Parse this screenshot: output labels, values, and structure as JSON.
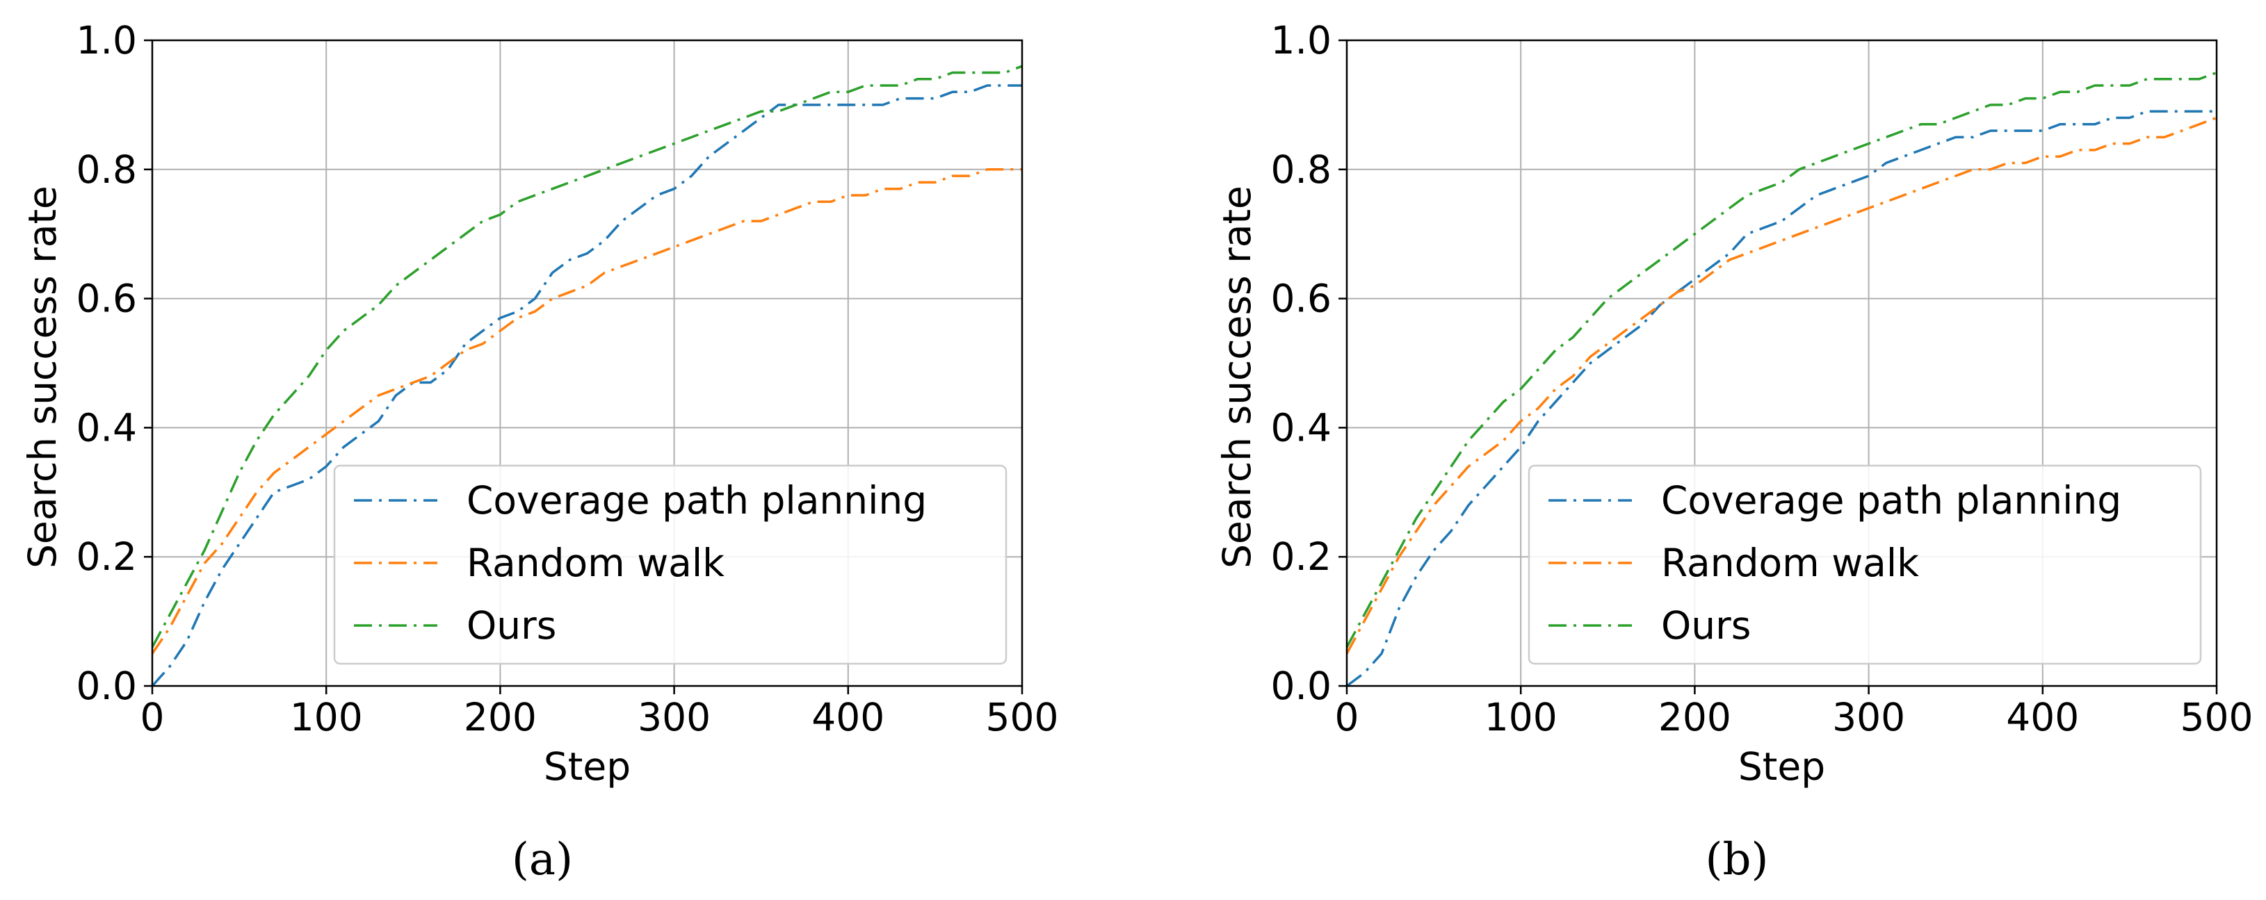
{
  "figure": {
    "subplots": [
      {
        "caption": "(a)",
        "chart_index": 0
      },
      {
        "caption": "(b)",
        "chart_index": 1
      }
    ]
  },
  "chart_data": [
    {
      "type": "line",
      "title": "",
      "xlabel": "Step",
      "ylabel": "Search success rate",
      "xlim": [
        0,
        500
      ],
      "ylim": [
        0.0,
        1.0
      ],
      "xticks": [
        "0",
        "100",
        "200",
        "300",
        "400",
        "500"
      ],
      "yticks": [
        "0.0",
        "0.2",
        "0.4",
        "0.6",
        "0.8",
        "1.0"
      ],
      "grid": true,
      "legend_position": "lower-right",
      "series": [
        {
          "name": "Coverage path planning",
          "color": "#1f77b4",
          "style": "dashdot",
          "x": [
            0,
            10,
            20,
            30,
            40,
            50,
            60,
            70,
            80,
            90,
            100,
            110,
            120,
            130,
            140,
            150,
            160,
            170,
            180,
            190,
            200,
            210,
            220,
            230,
            240,
            250,
            260,
            270,
            280,
            290,
            300,
            310,
            320,
            330,
            340,
            350,
            360,
            370,
            380,
            390,
            400,
            410,
            420,
            430,
            440,
            450,
            460,
            470,
            480,
            490,
            500
          ],
          "y": [
            0.0,
            0.03,
            0.07,
            0.13,
            0.18,
            0.22,
            0.26,
            0.3,
            0.31,
            0.32,
            0.34,
            0.37,
            0.39,
            0.41,
            0.45,
            0.47,
            0.47,
            0.49,
            0.53,
            0.55,
            0.57,
            0.58,
            0.6,
            0.64,
            0.66,
            0.67,
            0.69,
            0.72,
            0.74,
            0.76,
            0.77,
            0.79,
            0.82,
            0.84,
            0.86,
            0.88,
            0.9,
            0.9,
            0.9,
            0.9,
            0.9,
            0.9,
            0.9,
            0.91,
            0.91,
            0.91,
            0.92,
            0.92,
            0.93,
            0.93,
            0.93
          ]
        },
        {
          "name": "Random walk",
          "color": "#ff7f0e",
          "style": "dashdot",
          "x": [
            0,
            10,
            20,
            30,
            40,
            50,
            60,
            70,
            80,
            90,
            100,
            110,
            120,
            130,
            140,
            150,
            160,
            170,
            180,
            190,
            200,
            210,
            220,
            230,
            240,
            250,
            260,
            270,
            280,
            290,
            300,
            310,
            320,
            330,
            340,
            350,
            360,
            370,
            380,
            390,
            400,
            410,
            420,
            430,
            440,
            450,
            460,
            470,
            480,
            490,
            500
          ],
          "y": [
            0.05,
            0.09,
            0.14,
            0.19,
            0.22,
            0.26,
            0.3,
            0.33,
            0.35,
            0.37,
            0.39,
            0.41,
            0.43,
            0.45,
            0.46,
            0.47,
            0.48,
            0.5,
            0.52,
            0.53,
            0.55,
            0.57,
            0.58,
            0.6,
            0.61,
            0.62,
            0.64,
            0.65,
            0.66,
            0.67,
            0.68,
            0.69,
            0.7,
            0.71,
            0.72,
            0.72,
            0.73,
            0.74,
            0.75,
            0.75,
            0.76,
            0.76,
            0.77,
            0.77,
            0.78,
            0.78,
            0.79,
            0.79,
            0.8,
            0.8,
            0.8
          ]
        },
        {
          "name": "Ours",
          "color": "#2ca02c",
          "style": "dashdot",
          "x": [
            0,
            10,
            20,
            30,
            40,
            50,
            60,
            70,
            80,
            90,
            100,
            110,
            120,
            130,
            140,
            150,
            160,
            170,
            180,
            190,
            200,
            210,
            220,
            230,
            240,
            250,
            260,
            270,
            280,
            290,
            300,
            310,
            320,
            330,
            340,
            350,
            360,
            370,
            380,
            390,
            400,
            410,
            420,
            430,
            440,
            450,
            460,
            470,
            480,
            490,
            500
          ],
          "y": [
            0.06,
            0.11,
            0.16,
            0.21,
            0.27,
            0.33,
            0.38,
            0.42,
            0.45,
            0.48,
            0.52,
            0.55,
            0.57,
            0.59,
            0.62,
            0.64,
            0.66,
            0.68,
            0.7,
            0.72,
            0.73,
            0.75,
            0.76,
            0.77,
            0.78,
            0.79,
            0.8,
            0.81,
            0.82,
            0.83,
            0.84,
            0.85,
            0.86,
            0.87,
            0.88,
            0.89,
            0.89,
            0.9,
            0.91,
            0.92,
            0.92,
            0.93,
            0.93,
            0.93,
            0.94,
            0.94,
            0.95,
            0.95,
            0.95,
            0.95,
            0.96
          ]
        }
      ]
    },
    {
      "type": "line",
      "title": "",
      "xlabel": "Step",
      "ylabel": "Search success rate",
      "xlim": [
        0,
        500
      ],
      "ylim": [
        0.0,
        1.0
      ],
      "xticks": [
        "0",
        "100",
        "200",
        "300",
        "400",
        "500"
      ],
      "yticks": [
        "0.0",
        "0.2",
        "0.4",
        "0.6",
        "0.8",
        "1.0"
      ],
      "grid": true,
      "legend_position": "lower-right",
      "series": [
        {
          "name": "Coverage path planning",
          "color": "#1f77b4",
          "style": "dashdot",
          "x": [
            0,
            10,
            20,
            30,
            40,
            50,
            60,
            70,
            80,
            90,
            100,
            110,
            120,
            130,
            140,
            150,
            160,
            170,
            180,
            190,
            200,
            210,
            220,
            230,
            240,
            250,
            260,
            270,
            280,
            290,
            300,
            310,
            320,
            330,
            340,
            350,
            360,
            370,
            380,
            390,
            400,
            410,
            420,
            430,
            440,
            450,
            460,
            470,
            480,
            490,
            500
          ],
          "y": [
            0.0,
            0.02,
            0.05,
            0.12,
            0.17,
            0.21,
            0.24,
            0.28,
            0.31,
            0.34,
            0.37,
            0.41,
            0.44,
            0.47,
            0.5,
            0.52,
            0.54,
            0.56,
            0.59,
            0.61,
            0.63,
            0.65,
            0.67,
            0.7,
            0.71,
            0.72,
            0.74,
            0.76,
            0.77,
            0.78,
            0.79,
            0.81,
            0.82,
            0.83,
            0.84,
            0.85,
            0.85,
            0.86,
            0.86,
            0.86,
            0.86,
            0.87,
            0.87,
            0.87,
            0.88,
            0.88,
            0.89,
            0.89,
            0.89,
            0.89,
            0.89
          ]
        },
        {
          "name": "Random walk",
          "color": "#ff7f0e",
          "style": "dashdot",
          "x": [
            0,
            10,
            20,
            30,
            40,
            50,
            60,
            70,
            80,
            90,
            100,
            110,
            120,
            130,
            140,
            150,
            160,
            170,
            180,
            190,
            200,
            210,
            220,
            230,
            240,
            250,
            260,
            270,
            280,
            290,
            300,
            310,
            320,
            330,
            340,
            350,
            360,
            370,
            380,
            390,
            400,
            410,
            420,
            430,
            440,
            450,
            460,
            470,
            480,
            490,
            500
          ],
          "y": [
            0.05,
            0.1,
            0.15,
            0.2,
            0.24,
            0.28,
            0.31,
            0.34,
            0.36,
            0.38,
            0.41,
            0.43,
            0.46,
            0.48,
            0.51,
            0.53,
            0.55,
            0.57,
            0.59,
            0.61,
            0.62,
            0.64,
            0.66,
            0.67,
            0.68,
            0.69,
            0.7,
            0.71,
            0.72,
            0.73,
            0.74,
            0.75,
            0.76,
            0.77,
            0.78,
            0.79,
            0.8,
            0.8,
            0.81,
            0.81,
            0.82,
            0.82,
            0.83,
            0.83,
            0.84,
            0.84,
            0.85,
            0.85,
            0.86,
            0.87,
            0.88
          ]
        },
        {
          "name": "Ours",
          "color": "#2ca02c",
          "style": "dashdot",
          "x": [
            0,
            10,
            20,
            30,
            40,
            50,
            60,
            70,
            80,
            90,
            100,
            110,
            120,
            130,
            140,
            150,
            160,
            170,
            180,
            190,
            200,
            210,
            220,
            230,
            240,
            250,
            260,
            270,
            280,
            290,
            300,
            310,
            320,
            330,
            340,
            350,
            360,
            370,
            380,
            390,
            400,
            410,
            420,
            430,
            440,
            450,
            460,
            470,
            480,
            490,
            500
          ],
          "y": [
            0.06,
            0.11,
            0.16,
            0.21,
            0.26,
            0.3,
            0.34,
            0.38,
            0.41,
            0.44,
            0.46,
            0.49,
            0.52,
            0.54,
            0.57,
            0.6,
            0.62,
            0.64,
            0.66,
            0.68,
            0.7,
            0.72,
            0.74,
            0.76,
            0.77,
            0.78,
            0.8,
            0.81,
            0.82,
            0.83,
            0.84,
            0.85,
            0.86,
            0.87,
            0.87,
            0.88,
            0.89,
            0.9,
            0.9,
            0.91,
            0.91,
            0.92,
            0.92,
            0.93,
            0.93,
            0.93,
            0.94,
            0.94,
            0.94,
            0.94,
            0.95
          ]
        }
      ]
    }
  ]
}
